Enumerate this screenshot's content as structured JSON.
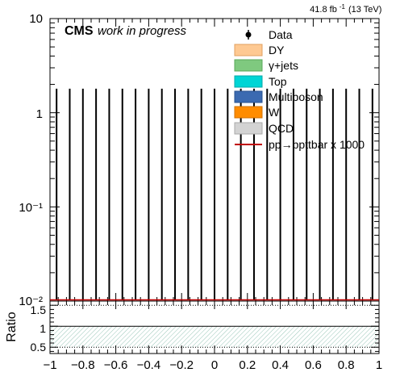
{
  "chart_data": [
    {
      "panel": "main",
      "type": "scatter",
      "y_scale": "log",
      "ylim": [
        0.01,
        10
      ],
      "xlim": [
        -1,
        1
      ],
      "y_tick_labels": [
        "10",
        "1",
        "10⁻¹",
        "10⁻²"
      ],
      "luminosity_label": "41.8 fb",
      "luminosity_exponent": "-1",
      "energy_label": "(13 TeV)",
      "experiment_label": "CMS",
      "status_label": "work in progress",
      "legend_position": "top-right",
      "legend": [
        {
          "label": "Data",
          "kind": "marker",
          "color": "#000000"
        },
        {
          "label": "DY",
          "kind": "box",
          "color": "#fec992"
        },
        {
          "label": "γ+jets",
          "kind": "box",
          "color": "#7fc97f"
        },
        {
          "label": "Top",
          "kind": "box",
          "color": "#00d5d5"
        },
        {
          "label": "Multiboson",
          "kind": "box",
          "color": "#3b6ab1"
        },
        {
          "label": "W",
          "kind": "box",
          "color": "#ff8c00"
        },
        {
          "label": "QCD",
          "kind": "box",
          "color": "#d3d3d3"
        },
        {
          "label": "pp→ppttbar x 1000",
          "kind": "line",
          "color": "#c00000"
        }
      ],
      "data_series": {
        "name": "Data",
        "x": [
          -0.96,
          -0.88,
          -0.8,
          -0.72,
          -0.64,
          -0.56,
          -0.48,
          -0.4,
          -0.32,
          -0.24,
          -0.16,
          -0.08,
          0.0,
          0.08,
          0.16,
          0.24,
          0.32,
          0.4,
          0.48,
          0.56,
          0.64,
          0.72,
          0.8,
          0.88,
          0.96
        ],
        "y_low": [
          0.01,
          0.01,
          0.01,
          0.01,
          0.01,
          0.01,
          0.01,
          0.01,
          0.01,
          0.01,
          0.01,
          0.01,
          0.01,
          0.01,
          0.01,
          0.01,
          0.01,
          0.01,
          0.01,
          0.01,
          0.01,
          0.01,
          0.01,
          0.01,
          0.01
        ],
        "y_high": [
          1.8,
          1.8,
          1.8,
          1.8,
          1.8,
          1.8,
          1.8,
          1.8,
          1.8,
          1.8,
          1.8,
          1.8,
          1.8,
          1.8,
          1.8,
          1.8,
          1.8,
          1.8,
          1.8,
          1.8,
          1.8,
          1.8,
          1.8,
          1.8,
          1.8
        ]
      },
      "signal_line": {
        "name": "pp→ppttbar x 1000",
        "y": 0.01,
        "color": "#c00000"
      }
    },
    {
      "panel": "ratio",
      "type": "area",
      "ylabel": "Ratio",
      "ylim": [
        0.35,
        1.6
      ],
      "xlim": [
        -1,
        1
      ],
      "x_ticks": [
        -1,
        -0.8,
        -0.6,
        -0.4,
        -0.2,
        0,
        0.2,
        0.4,
        0.6,
        0.8,
        1
      ],
      "x_tick_labels": [
        "−1",
        "−0.8",
        "−0.6",
        "−0.4",
        "−0.2",
        "0",
        "0.2",
        "0.4",
        "0.6",
        "0.8",
        "1"
      ],
      "y_ticks": [
        0.5,
        1,
        1.5
      ],
      "y_tick_labels": [
        "0.5",
        "1",
        "1.5"
      ],
      "reference_lines": [
        0.5,
        1.0,
        1.5
      ],
      "uncertainty_band": {
        "low": 0.5,
        "high": 1.0,
        "color": "#7fb8a6"
      }
    }
  ]
}
